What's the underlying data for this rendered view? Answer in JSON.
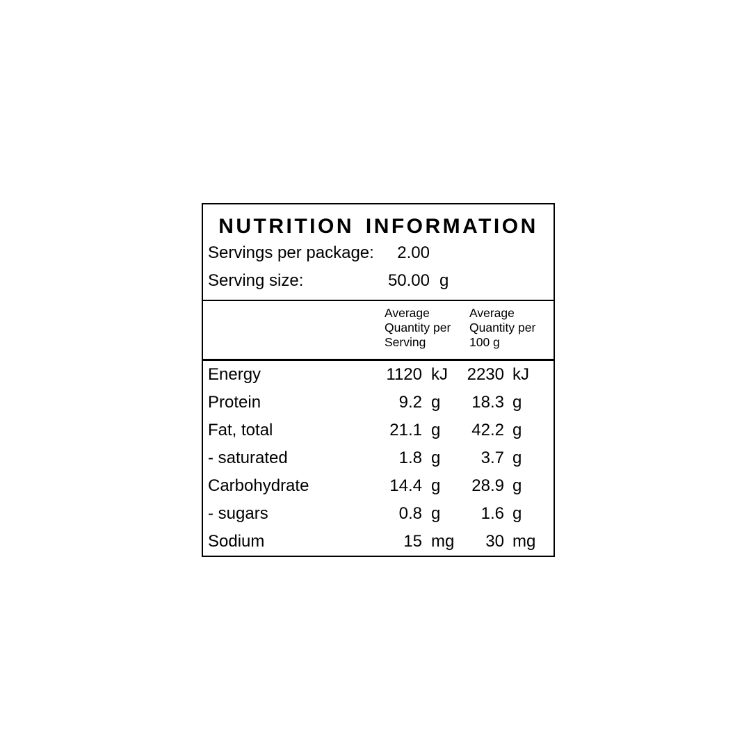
{
  "panel": {
    "title": "NUTRITION INFORMATION",
    "servings_per_package": {
      "label": "Servings per package:",
      "value": "2.00"
    },
    "serving_size": {
      "label": "Serving size:",
      "value": "50.00",
      "unit": "g"
    },
    "column_headers": {
      "per_serving": {
        "line1": "Average",
        "line2": "Quantity per",
        "line3": "Serving"
      },
      "per_100g": {
        "line1": "Average",
        "line2": "Quantity per",
        "line3": "100 g"
      }
    },
    "rows": [
      {
        "label": "Energy",
        "qty_serving": "1120",
        "unit_serving": "kJ",
        "qty_100g": "2230",
        "unit_100g": "kJ"
      },
      {
        "label": "Protein",
        "qty_serving": "9.2",
        "unit_serving": "g",
        "qty_100g": "18.3",
        "unit_100g": "g"
      },
      {
        "label": "Fat, total",
        "qty_serving": "21.1",
        "unit_serving": "g",
        "qty_100g": "42.2",
        "unit_100g": "g"
      },
      {
        "label": "- saturated",
        "qty_serving": "1.8",
        "unit_serving": "g",
        "qty_100g": "3.7",
        "unit_100g": "g"
      },
      {
        "label": "Carbohydrate",
        "qty_serving": "14.4",
        "unit_serving": "g",
        "qty_100g": "28.9",
        "unit_100g": "g"
      },
      {
        "label": "- sugars",
        "qty_serving": "0.8",
        "unit_serving": "g",
        "qty_100g": "1.6",
        "unit_100g": "g"
      },
      {
        "label": "Sodium",
        "qty_serving": "15",
        "unit_serving": "mg",
        "qty_100g": "30",
        "unit_100g": "mg"
      }
    ],
    "colors": {
      "text": "#000000",
      "border": "#000000",
      "background": "#ffffff"
    }
  }
}
